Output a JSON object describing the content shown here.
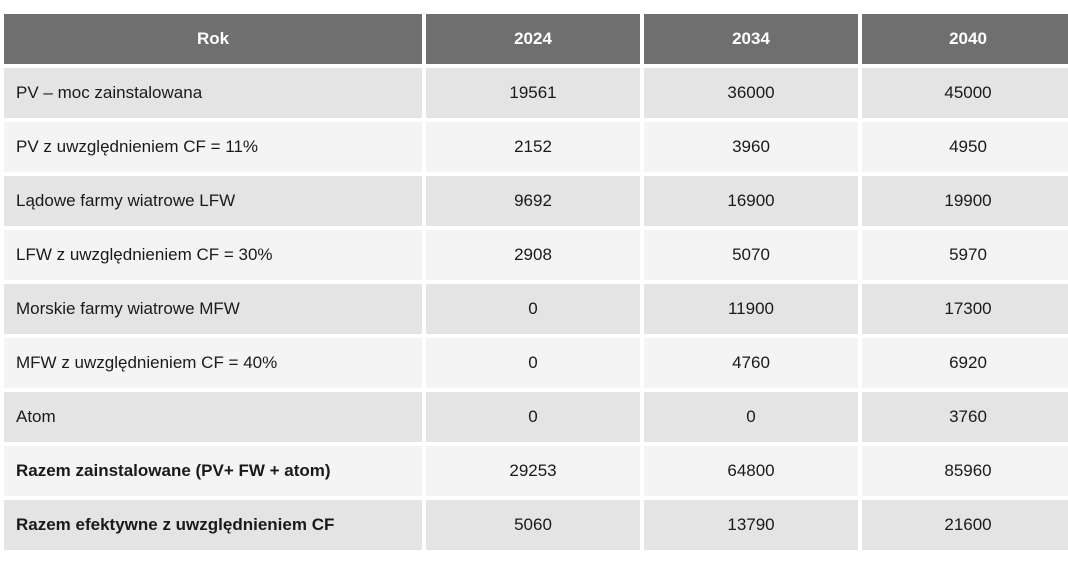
{
  "table": {
    "headers": [
      "Rok",
      "2024",
      "2034",
      "2040"
    ],
    "rows": [
      {
        "label": "PV – moc zainstalowana",
        "values": [
          "19561",
          "36000",
          "45000"
        ],
        "bold": false
      },
      {
        "label": "PV z uwzględnieniem CF = 11%",
        "values": [
          "2152",
          "3960",
          "4950"
        ],
        "bold": false
      },
      {
        "label": "Lądowe farmy wiatrowe LFW",
        "values": [
          "9692",
          "16900",
          "19900"
        ],
        "bold": false
      },
      {
        "label": "LFW z uwzględnieniem CF = 30%",
        "values": [
          "2908",
          "5070",
          "5970"
        ],
        "bold": false
      },
      {
        "label": "Morskie farmy wiatrowe MFW",
        "values": [
          "0",
          "11900",
          "17300"
        ],
        "bold": false
      },
      {
        "label": "MFW z uwzględnieniem CF = 40%",
        "values": [
          "0",
          "4760",
          "6920"
        ],
        "bold": false
      },
      {
        "label": "Atom",
        "values": [
          "0",
          "0",
          "3760"
        ],
        "bold": false
      },
      {
        "label": "Razem zainstalowane (PV+ FW + atom)",
        "values": [
          "29253",
          "64800",
          "85960"
        ],
        "bold": true
      },
      {
        "label": "Razem efektywne z uwzględnieniem CF",
        "values": [
          "5060",
          "13790",
          "21600"
        ],
        "bold": true
      }
    ]
  },
  "colors": {
    "header_bg": "#706f6f",
    "row_shade": "#e4e4e4",
    "row_plain": "#f4f4f4"
  }
}
